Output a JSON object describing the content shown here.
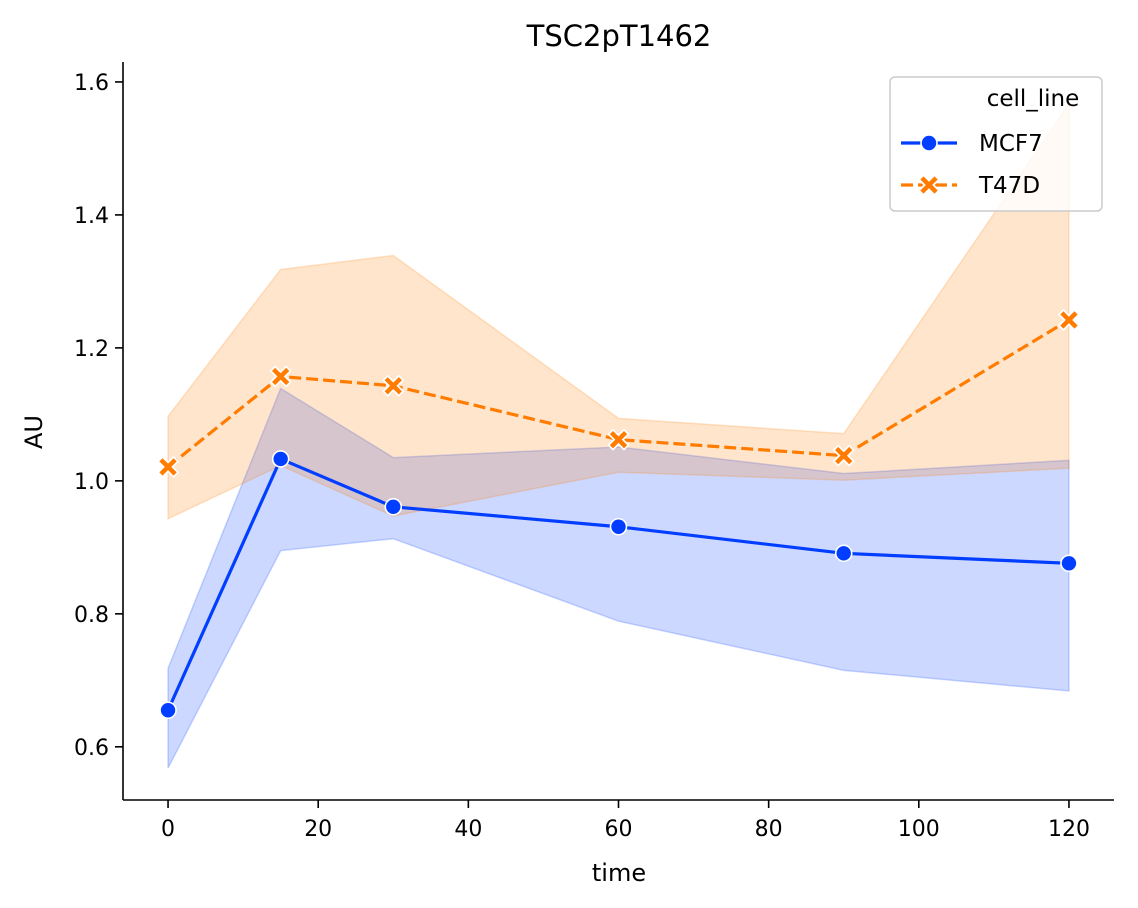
{
  "chart_data": {
    "type": "line",
    "title": "TSC2pT1462",
    "xlabel": "time",
    "ylabel": "AU",
    "xlim": [
      -6,
      126
    ],
    "ylim": [
      0.52,
      1.63
    ],
    "xticks": [
      0,
      20,
      40,
      60,
      80,
      100,
      120
    ],
    "xtick_labels": [
      "0",
      "20",
      "40",
      "60",
      "80",
      "100",
      "120"
    ],
    "yticks": [
      0.6,
      0.8,
      1.0,
      1.2,
      1.4,
      1.6
    ],
    "ytick_labels": [
      "0.6",
      "0.8",
      "1.0",
      "1.2",
      "1.4",
      "1.6"
    ],
    "grid": false,
    "legend": {
      "title": "cell_line",
      "placement": "top-right"
    },
    "x": [
      0,
      15,
      30,
      60,
      90,
      120
    ],
    "series": [
      {
        "name": "MCF7",
        "color": "#023eff",
        "marker": "circle",
        "linestyle": "solid",
        "values": [
          0.655,
          1.033,
          0.961,
          0.931,
          0.891,
          0.876
        ],
        "ci_lower": [
          0.568,
          0.895,
          0.913,
          0.789,
          0.715,
          0.684
        ],
        "ci_upper": [
          0.718,
          1.139,
          1.035,
          1.051,
          1.011,
          1.031
        ]
      },
      {
        "name": "T47D",
        "color": "#ff7c00",
        "marker": "x",
        "linestyle": "dashed",
        "values": [
          1.021,
          1.157,
          1.143,
          1.062,
          1.038,
          1.242
        ],
        "ci_lower": [
          0.943,
          1.023,
          0.947,
          1.013,
          1.001,
          1.019
        ],
        "ci_upper": [
          1.097,
          1.318,
          1.339,
          1.094,
          1.071,
          1.567
        ]
      }
    ]
  }
}
